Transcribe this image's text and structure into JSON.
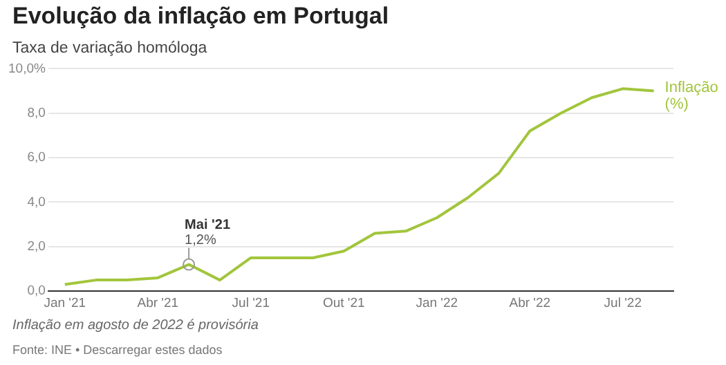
{
  "chart_data": {
    "type": "line",
    "title": "Evolução da inflação em Portugal",
    "subtitle": "Taxa de variação homóloga",
    "x": [
      "2021-01",
      "2021-02",
      "2021-03",
      "2021-04",
      "2021-05",
      "2021-06",
      "2021-07",
      "2021-08",
      "2021-09",
      "2021-10",
      "2021-11",
      "2021-12",
      "2022-01",
      "2022-02",
      "2022-03",
      "2022-04",
      "2022-05",
      "2022-06",
      "2022-07",
      "2022-08"
    ],
    "series": [
      {
        "name": "Inflação (%)",
        "color": "#a2c53c",
        "values": [
          0.3,
          0.5,
          0.5,
          0.6,
          1.2,
          0.5,
          1.5,
          1.5,
          1.5,
          1.8,
          2.6,
          2.7,
          3.3,
          4.2,
          5.3,
          7.2,
          8.0,
          8.7,
          9.1,
          9.0
        ]
      }
    ],
    "xlim": [
      "2020-12-15",
      "2022-08-20"
    ],
    "xticks": [
      {
        "value": "2021-01",
        "label": "Jan '21"
      },
      {
        "value": "2021-04",
        "label": "Abr '21"
      },
      {
        "value": "2021-07",
        "label": "Jul '21"
      },
      {
        "value": "2021-10",
        "label": "Out '21"
      },
      {
        "value": "2022-01",
        "label": "Jan '22"
      },
      {
        "value": "2022-04",
        "label": "Abr '22"
      },
      {
        "value": "2022-07",
        "label": "Jul '22"
      }
    ],
    "ylim": [
      0,
      10
    ],
    "yticks": [
      {
        "value": 0,
        "label": "0,0"
      },
      {
        "value": 2,
        "label": "2,0"
      },
      {
        "value": 4,
        "label": "4,0"
      },
      {
        "value": 6,
        "label": "6,0"
      },
      {
        "value": 8,
        "label": "8,0"
      },
      {
        "value": 10,
        "label": "10,0%"
      }
    ],
    "grid": "y",
    "legend": false,
    "marker": "none",
    "line_style": "solid",
    "annotations": [
      {
        "text": "Mai '21\n1,2%",
        "x": "2021-05",
        "y": 1.2
      },
      "Inflação em agosto de 2022 é provisória",
      "Fonte: INE • Descarregar estes dados"
    ]
  }
}
